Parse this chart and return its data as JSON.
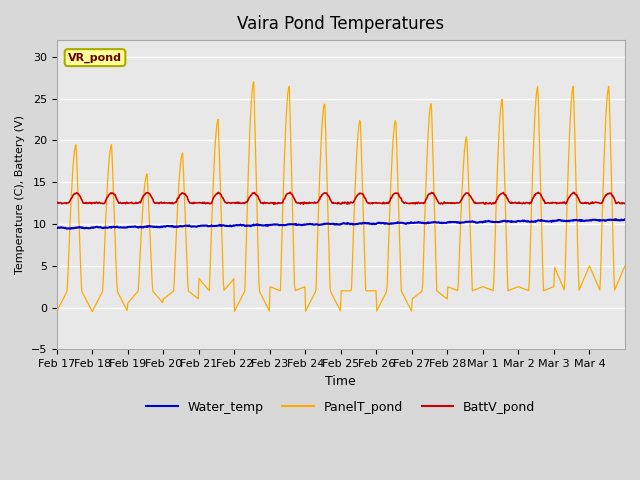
{
  "title": "Vaira Pond Temperatures",
  "xlabel": "Time",
  "ylabel": "Temperature (C), Battery (V)",
  "ylim": [
    -5,
    32
  ],
  "yticks": [
    -5,
    0,
    5,
    10,
    15,
    20,
    25,
    30
  ],
  "xtick_labels": [
    "Feb 17",
    "Feb 18",
    "Feb 19",
    "Feb 20",
    "Feb 21",
    "Feb 22",
    "Feb 23",
    "Feb 24",
    "Feb 25",
    "Feb 26",
    "Feb 27",
    "Feb 28",
    "Mar 1",
    "Mar 2",
    "Mar 3",
    "Mar 4"
  ],
  "water_color": "#0000cc",
  "panel_color": "#ffaa00",
  "batt_color": "#cc0000",
  "site_label": "VR_pond",
  "site_label_bg": "#ffff99",
  "site_label_border": "#aaaa00",
  "daily_peaks": [
    19.5,
    19.5,
    16.0,
    18.5,
    22.5,
    27.0,
    26.5,
    24.5,
    22.5,
    22.5,
    24.5,
    20.5,
    25.0,
    26.5,
    26.5,
    26.5
  ],
  "daily_mins": [
    -0.5,
    -0.5,
    0.5,
    1.0,
    3.5,
    -0.5,
    2.5,
    -0.5,
    2.0,
    -0.5,
    1.0,
    2.5,
    2.5,
    2.5,
    5.0,
    5.0
  ]
}
